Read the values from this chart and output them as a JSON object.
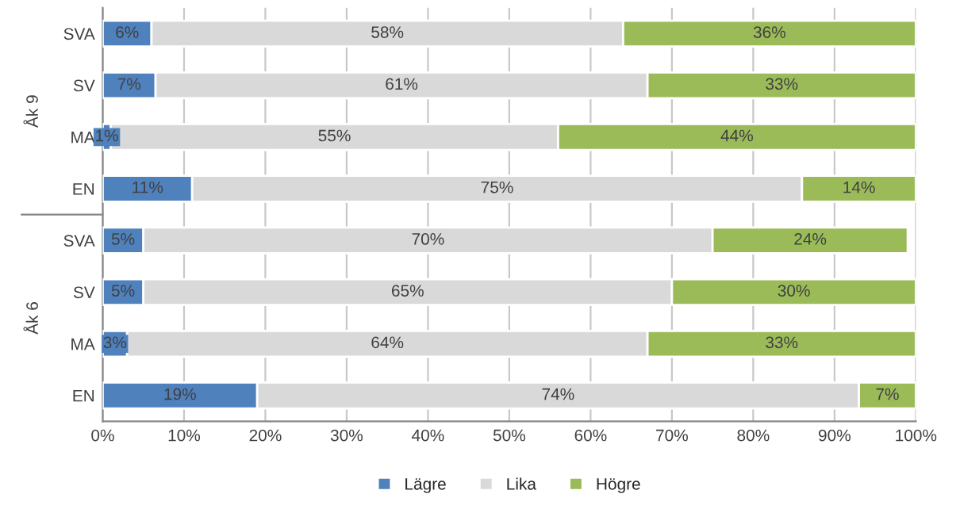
{
  "chart_data": {
    "type": "bar",
    "orientation": "horizontal",
    "stacked": true,
    "categories": [
      "SVA",
      "SV",
      "MA",
      "EN",
      "SVA",
      "SV",
      "MA",
      "EN"
    ],
    "series": [
      {
        "name": "Lägre",
        "color": "#4f81bd",
        "values": [
          6,
          6.5,
          1,
          11,
          5,
          5,
          3,
          19
        ],
        "value_labels": [
          "6%",
          "7%",
          "1%",
          "11%",
          "5%",
          "5%",
          "3%",
          "19%"
        ]
      },
      {
        "name": "Lika",
        "color": "#d9d9d9",
        "values": [
          58,
          60.5,
          55,
          75,
          70,
          65,
          64,
          74
        ],
        "value_labels": [
          "58%",
          "61%",
          "55%",
          "75%",
          "70%",
          "65%",
          "64%",
          "74%"
        ]
      },
      {
        "name": "Högre",
        "color": "#9bbb59",
        "values": [
          36,
          33,
          44,
          14,
          24,
          30,
          33,
          7
        ],
        "value_labels": [
          "36%",
          "33%",
          "44%",
          "14%",
          "24%",
          "30%",
          "33%",
          "7%"
        ]
      }
    ],
    "xlim": [
      0,
      100
    ],
    "xticks": [
      {
        "value": 0,
        "label": "0%"
      },
      {
        "value": 10,
        "label": "10%"
      },
      {
        "value": 20,
        "label": "20%"
      },
      {
        "value": 30,
        "label": "30%"
      },
      {
        "value": 40,
        "label": "40%"
      },
      {
        "value": 50,
        "label": "50%"
      },
      {
        "value": 60,
        "label": "60%"
      },
      {
        "value": 70,
        "label": "70%"
      },
      {
        "value": 80,
        "label": "80%"
      },
      {
        "value": 90,
        "label": "90%"
      },
      {
        "value": 100,
        "label": "100%"
      }
    ],
    "annotations": [
      "Åk 9",
      "Åk 6"
    ],
    "grid": "x",
    "legend": "bottom"
  }
}
